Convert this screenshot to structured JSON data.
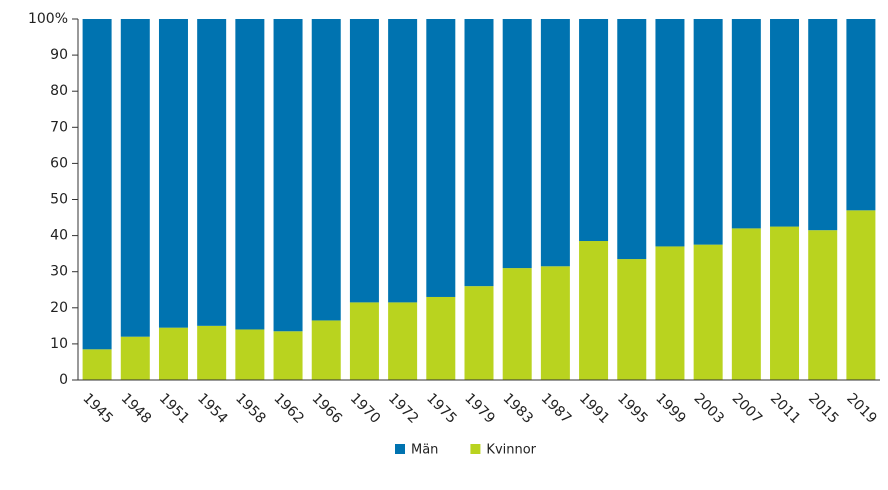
{
  "chart_data": {
    "type": "stacked_bar",
    "categories": [
      "1945",
      "1948",
      "1951",
      "1954",
      "1958",
      "1962",
      "1966",
      "1970",
      "1972",
      "1975",
      "1979",
      "1983",
      "1987",
      "1991",
      "1995",
      "1999",
      "2003",
      "2007",
      "2011",
      "2015",
      "2019"
    ],
    "series": [
      {
        "name": "Män",
        "color": "#0073b0",
        "values": [
          91.5,
          88,
          85.5,
          85,
          86,
          86.5,
          83.5,
          78.5,
          78.5,
          77,
          74,
          69,
          68.5,
          61.5,
          66.5,
          63,
          62.5,
          58,
          57.5,
          58.5,
          53
        ]
      },
      {
        "name": "Kvinnor",
        "color": "#b9d31f",
        "values": [
          8.5,
          12,
          14.5,
          15,
          14,
          13.5,
          16.5,
          21.5,
          21.5,
          23,
          26,
          31,
          31.5,
          38.5,
          33.5,
          37,
          37.5,
          42,
          42.5,
          41.5,
          47
        ]
      }
    ],
    "stack_order": [
      "Kvinnor",
      "Män"
    ],
    "ylim": [
      0,
      100
    ],
    "yticks": [
      0,
      10,
      20,
      30,
      40,
      50,
      60,
      70,
      80,
      90,
      {
        "value": 100,
        "label": "100%"
      }
    ],
    "grid": false,
    "legend": "bottom"
  }
}
